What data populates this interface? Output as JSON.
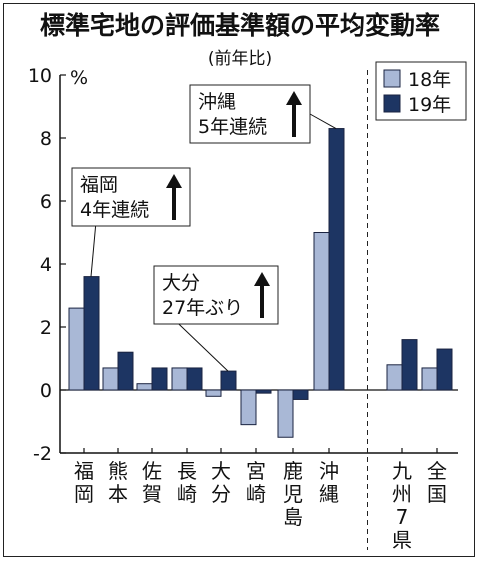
{
  "chart_data": {
    "type": "bar",
    "title": "標準宅地の評価基準額の平均変動率",
    "subtitle": "(前年比)",
    "yunit": "%",
    "ylim": [
      -2,
      10
    ],
    "yticks": [
      -2,
      0,
      2,
      4,
      6,
      8,
      10
    ],
    "categories": [
      "福岡",
      "熊本",
      "佐賀",
      "長崎",
      "大分",
      "宮崎",
      "鹿児島",
      "沖縄",
      "九州7県",
      "全国"
    ],
    "series": [
      {
        "name": "18年",
        "color": "#a9b8d6",
        "values": [
          2.6,
          0.7,
          0.2,
          0.7,
          -0.2,
          -1.1,
          -1.5,
          5.0,
          0.8,
          0.7
        ]
      },
      {
        "name": "19年",
        "color": "#1d3563",
        "values": [
          3.6,
          1.2,
          0.7,
          0.7,
          0.6,
          -0.1,
          -0.3,
          8.3,
          1.6,
          1.3
        ]
      }
    ],
    "legend_position": "top-right",
    "separator_after_index": 7,
    "annotations": [
      {
        "target": "福岡",
        "lines": [
          "福岡",
          "4年連続"
        ],
        "arrow": "up-arrow-icon"
      },
      {
        "target": "大分",
        "lines": [
          "大分",
          "27年ぶり"
        ],
        "arrow": "up-arrow-icon"
      },
      {
        "target": "沖縄",
        "lines": [
          "沖縄",
          "5年連続"
        ],
        "arrow": "up-arrow-icon"
      }
    ]
  }
}
